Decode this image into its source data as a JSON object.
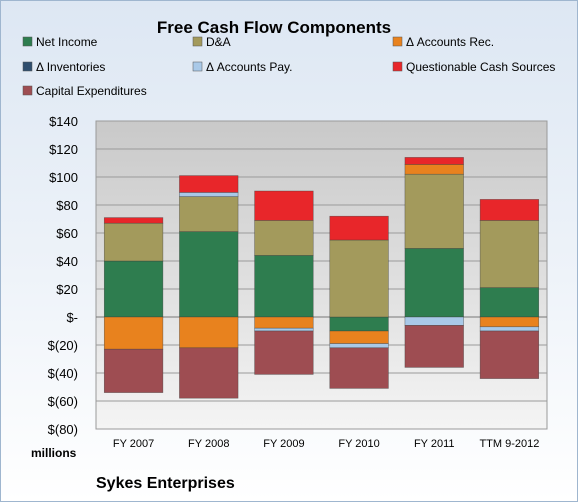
{
  "chart_data": {
    "type": "bar",
    "stacked": true,
    "title": "Free Cash Flow Components",
    "units_label": "millions",
    "footer": "Sykes Enterprises",
    "categories": [
      "FY 2007",
      "FY 2008",
      "FY 2009",
      "FY 2010",
      "FY 2011",
      "TTM 9-2012"
    ],
    "ylim": [
      -80,
      140
    ],
    "yticks": [
      -80,
      -60,
      -40,
      -20,
      0,
      20,
      40,
      60,
      80,
      100,
      120,
      140
    ],
    "ytick_labels": [
      "$(80)",
      "$(60)",
      "$(40)",
      "$(20)",
      "$-",
      "$20",
      "$40",
      "$60",
      "$80",
      "$100",
      "$120",
      "$140"
    ],
    "grid": true,
    "legend_position": "top",
    "series": [
      {
        "name": "Net Income",
        "color": "#2e7d4f",
        "values": [
          40,
          61,
          44,
          -10,
          49,
          21
        ]
      },
      {
        "name": "D&A",
        "color": "#a39a5c",
        "values": [
          27,
          25,
          25,
          55,
          53,
          48
        ]
      },
      {
        "name": "Δ Accounts Rec.",
        "color": "#e8821e",
        "values": [
          -23,
          -22,
          -8,
          -9,
          7,
          -7
        ]
      },
      {
        "name": "Δ Inventories",
        "color": "#2f4e6e",
        "values": [
          0,
          0,
          0,
          0,
          0,
          0
        ]
      },
      {
        "name": "Δ Accounts Pay.",
        "color": "#a9c9e8",
        "values": [
          0,
          3,
          -2,
          -3,
          -6,
          -3
        ]
      },
      {
        "name": "Questionable Cash Sources",
        "color": "#e8262a",
        "values": [
          4,
          12,
          21,
          17,
          5,
          15
        ]
      },
      {
        "name": "Capital Expenditures",
        "color": "#9e4d52",
        "values": [
          -31,
          -36,
          -31,
          -29,
          -30,
          -34
        ]
      }
    ]
  }
}
